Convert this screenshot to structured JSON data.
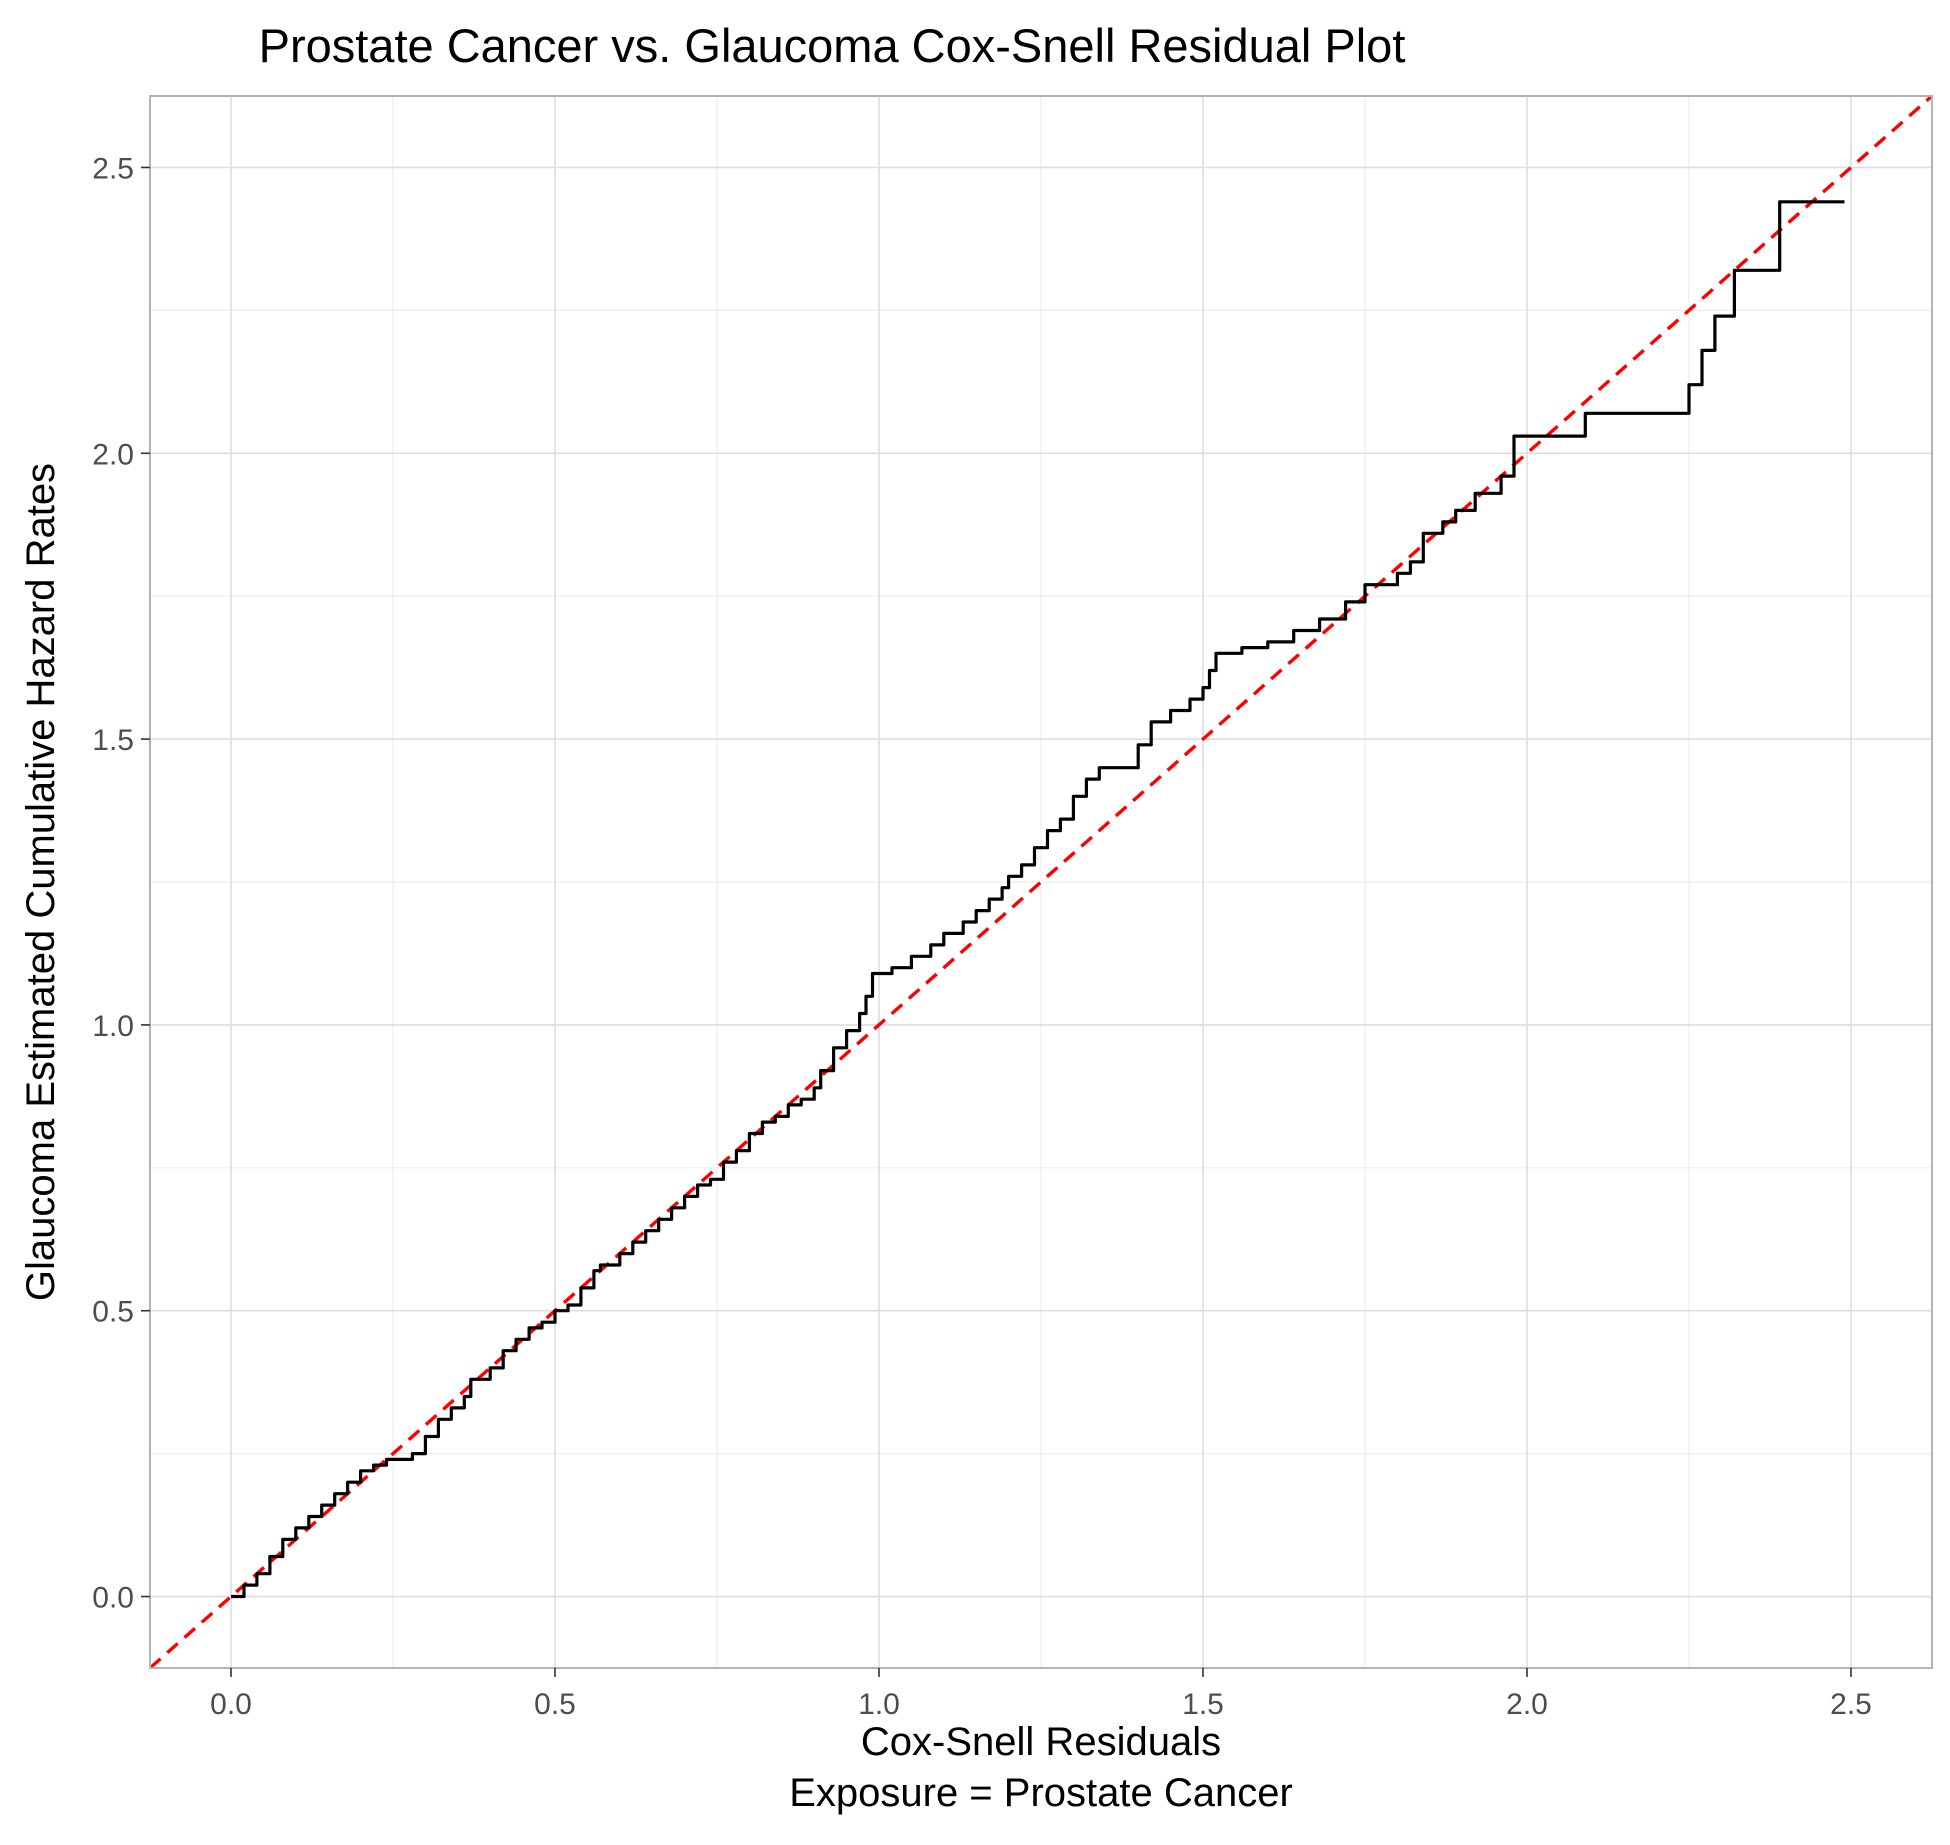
{
  "chart_data": {
    "type": "line",
    "title": "Prostate Cancer vs. Glaucoma Cox-Snell Residual Plot",
    "xlabel": "Cox-Snell Residuals",
    "xlabel_sub": "Exposure = Prostate Cancer",
    "ylabel": "Glaucoma Estimated Cumulative Hazard Rates",
    "xlim": [
      -0.125,
      2.625
    ],
    "ylim": [
      -0.125,
      2.625
    ],
    "x_ticks": [
      0.0,
      0.5,
      1.0,
      1.5,
      2.0,
      2.5
    ],
    "y_ticks": [
      0.0,
      0.5,
      1.0,
      1.5,
      2.0,
      2.5
    ],
    "x_tick_labels": [
      "0.0",
      "0.5",
      "1.0",
      "1.5",
      "2.0",
      "2.5"
    ],
    "y_tick_labels": [
      "0.0",
      "0.5",
      "1.0",
      "1.5",
      "2.0",
      "2.5"
    ],
    "grid": true,
    "colors": {
      "line": "#000000",
      "reference": "#ff0000",
      "grid": "#dedede",
      "panel_border": "#b3b3b3"
    },
    "series": [
      {
        "style": "solid",
        "step": true,
        "x": [
          0.0,
          0.02,
          0.04,
          0.06,
          0.08,
          0.1,
          0.12,
          0.14,
          0.16,
          0.18,
          0.2,
          0.22,
          0.24,
          0.26,
          0.28,
          0.3,
          0.32,
          0.34,
          0.36,
          0.37,
          0.4,
          0.42,
          0.44,
          0.46,
          0.48,
          0.5,
          0.52,
          0.54,
          0.56,
          0.57,
          0.6,
          0.62,
          0.64,
          0.66,
          0.68,
          0.7,
          0.72,
          0.74,
          0.76,
          0.78,
          0.8,
          0.82,
          0.84,
          0.86,
          0.88,
          0.9,
          0.91,
          0.93,
          0.95,
          0.97,
          0.98,
          0.99,
          1.02,
          1.05,
          1.08,
          1.1,
          1.13,
          1.15,
          1.17,
          1.19,
          1.2,
          1.22,
          1.24,
          1.26,
          1.28,
          1.3,
          1.32,
          1.34,
          1.38,
          1.4,
          1.42,
          1.45,
          1.48,
          1.5,
          1.51,
          1.52,
          1.56,
          1.6,
          1.64,
          1.68,
          1.72,
          1.75,
          1.8,
          1.82,
          1.84,
          1.87,
          1.89,
          1.92,
          1.96,
          1.98,
          2.06,
          2.09,
          2.23,
          2.25,
          2.27,
          2.29,
          2.32,
          2.39,
          2.49
        ],
        "y": [
          0.0,
          0.02,
          0.04,
          0.07,
          0.1,
          0.12,
          0.14,
          0.16,
          0.18,
          0.2,
          0.22,
          0.23,
          0.24,
          0.24,
          0.25,
          0.28,
          0.31,
          0.33,
          0.35,
          0.38,
          0.4,
          0.43,
          0.45,
          0.47,
          0.48,
          0.5,
          0.51,
          0.54,
          0.57,
          0.58,
          0.6,
          0.62,
          0.64,
          0.66,
          0.68,
          0.7,
          0.72,
          0.73,
          0.76,
          0.78,
          0.81,
          0.83,
          0.84,
          0.86,
          0.87,
          0.89,
          0.92,
          0.96,
          0.99,
          1.02,
          1.05,
          1.09,
          1.1,
          1.12,
          1.14,
          1.16,
          1.18,
          1.2,
          1.22,
          1.24,
          1.26,
          1.28,
          1.31,
          1.34,
          1.36,
          1.4,
          1.43,
          1.45,
          1.45,
          1.49,
          1.53,
          1.55,
          1.57,
          1.59,
          1.62,
          1.65,
          1.66,
          1.67,
          1.69,
          1.71,
          1.74,
          1.77,
          1.79,
          1.81,
          1.86,
          1.88,
          1.9,
          1.93,
          1.96,
          2.03,
          2.03,
          2.07,
          2.07,
          2.12,
          2.18,
          2.24,
          2.32,
          2.44,
          2.44
        ]
      },
      {
        "style": "dashed",
        "x": [
          -0.125,
          2.625
        ],
        "y": [
          -0.125,
          2.625
        ]
      }
    ]
  }
}
